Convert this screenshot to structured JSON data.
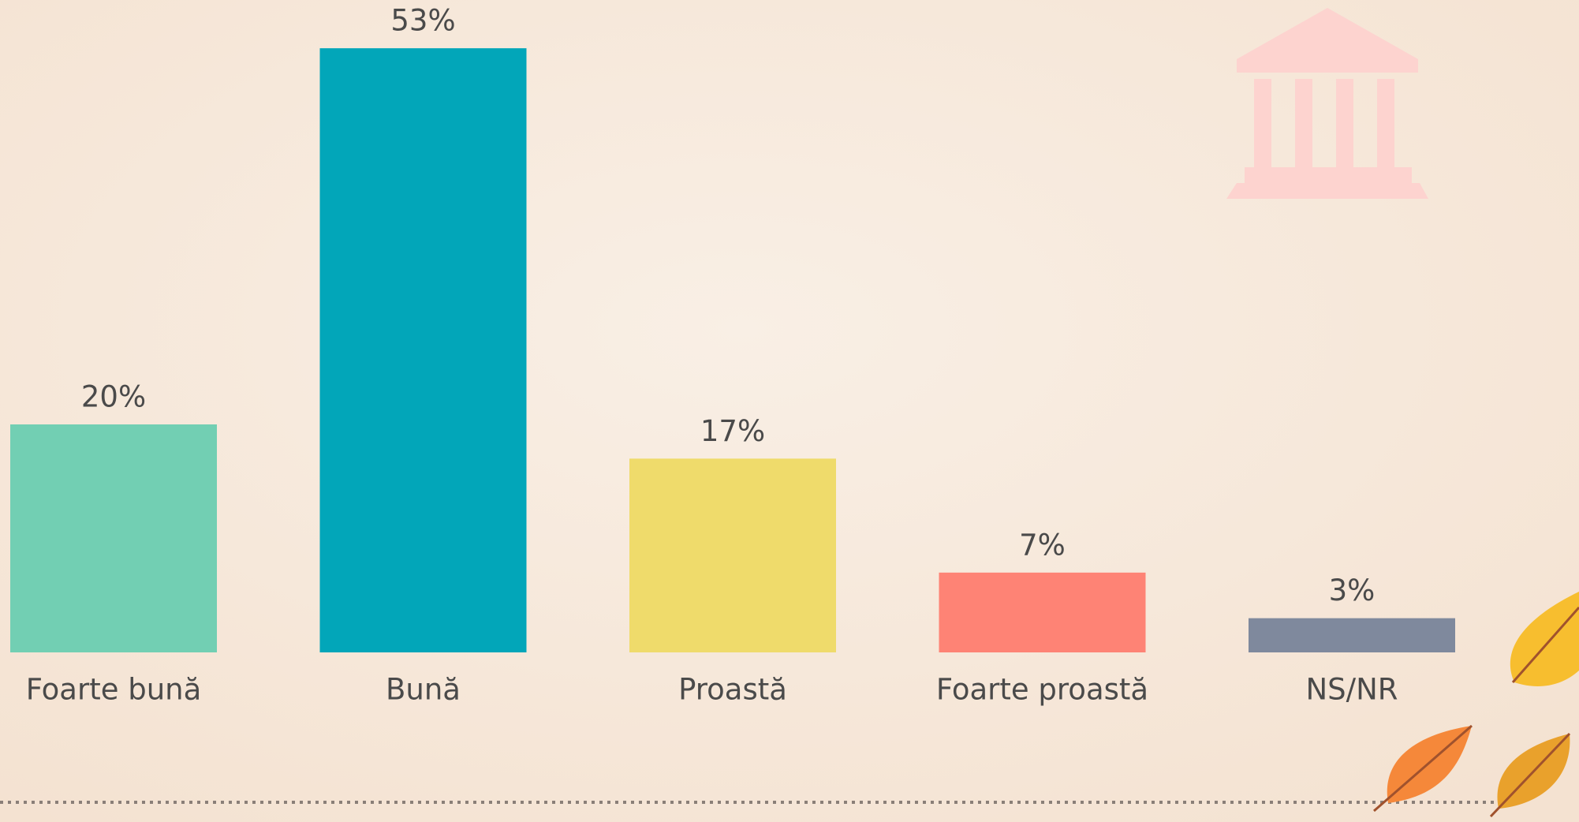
{
  "chart_data": {
    "type": "bar",
    "categories": [
      "Foarte bună",
      "Bună",
      "Proastă",
      "Foarte proastă",
      "NS/NR"
    ],
    "values": [
      20,
      53,
      17,
      7,
      3
    ],
    "value_labels": [
      "20%",
      "53%",
      "17%",
      "7%",
      "3%"
    ],
    "colors": [
      "#72cfb3",
      "#02a6b9",
      "#efdb6b",
      "#fe8375",
      "#7f899d"
    ]
  }
}
